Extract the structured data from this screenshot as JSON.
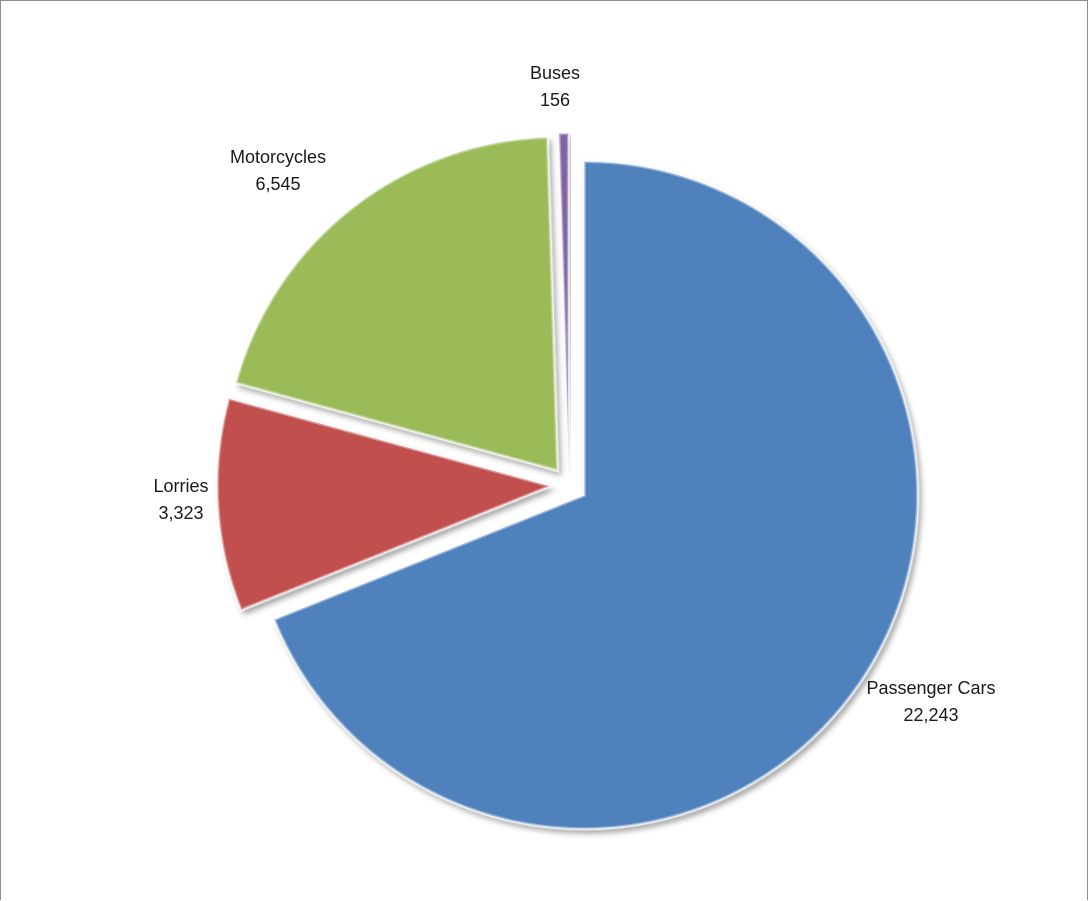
{
  "chart_data": {
    "type": "pie",
    "title": "",
    "categories": [
      "Passenger Cars",
      "Lorries",
      "Motorcycles",
      "Buses"
    ],
    "values": [
      22243,
      3323,
      6545,
      156
    ],
    "value_labels": [
      "22,243",
      "3,323",
      "6,545",
      "156"
    ],
    "exploded": true,
    "legend": "none",
    "data_labels": "category and value, outside each slice",
    "colors": [
      "#4f81bd",
      "#c0504d",
      "#9bbb59",
      "#8064a2"
    ]
  }
}
